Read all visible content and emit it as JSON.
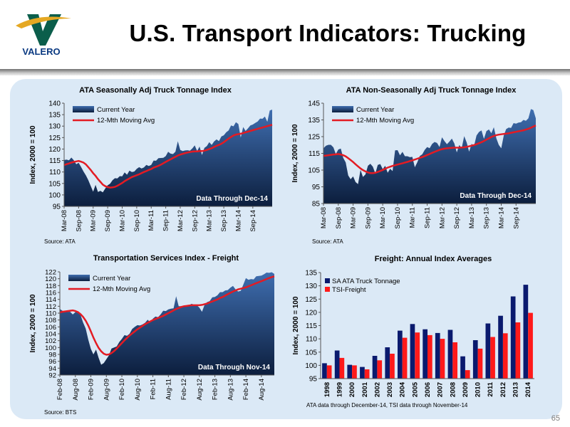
{
  "header": {
    "title": "U.S. Transport Indicators:  Trucking",
    "logo_text": "VALERO",
    "page_number": "65"
  },
  "colors": {
    "area_top": "#3f6eb0",
    "area_bottom": "#0c1e3d",
    "moving_avg": "#e31b23",
    "bar_dark": "#0a1a6e",
    "bar_red": "#ff1a1a",
    "panel_bg": "#dbe9f6"
  },
  "chart_data": [
    {
      "type": "area",
      "title": "ATA Seasonally Adj Truck Tonnage Index",
      "ylabel": "Index, 2000 = 100",
      "xlabel": "",
      "ylim": [
        95,
        140
      ],
      "yticks": [
        95,
        100,
        105,
        110,
        115,
        120,
        125,
        130,
        135,
        140
      ],
      "x_start": "2008-03",
      "tick_labels": [
        "Mar-08",
        "Sep-08",
        "Mar-09",
        "Sep-09",
        "Mar-10",
        "Sep-10",
        "Mar-11",
        "Sep-11",
        "Mar-12",
        "Sep-12",
        "Mar-13",
        "Sep-13",
        "Mar-14",
        "Sep-14"
      ],
      "series": [
        {
          "name": "Current Year",
          "kind": "area",
          "values": [
            115.2,
            115.4,
            115.1,
            116.3,
            115.1,
            113.4,
            114.0,
            112.2,
            110.2,
            108.5,
            106.4,
            103.9,
            101.4,
            104.4,
            101.3,
            101.8,
            101.1,
            102.8,
            104.2,
            104.9,
            106.4,
            107.3,
            107.2,
            108.2,
            108.1,
            109.8,
            108.8,
            110.6,
            110.0,
            110.2,
            111.4,
            112.1,
            111.5,
            112.0,
            113.1,
            112.6,
            113.1,
            115.0,
            114.9,
            116.0,
            116.1,
            116.2,
            116.9,
            118.8,
            118.0,
            117.8,
            118.8,
            123.4,
            119.6,
            119.1,
            119.4,
            119.5,
            119.3,
            120.3,
            121.6,
            119.1,
            121.1,
            117.4,
            120.5,
            121.3,
            123.0,
            121.8,
            123.3,
            124.2,
            123.5,
            125.5,
            126.0,
            127.3,
            128.1,
            130.3,
            129.9,
            131.7,
            130.9,
            125.0,
            129.6,
            127.9,
            129.0,
            130.3,
            130.7,
            131.4,
            132.0,
            133.3,
            133.2,
            134.2,
            131.9,
            136.8,
            137.2
          ]
        },
        {
          "name": "12-Mth Moving Avg",
          "kind": "line",
          "values": [
            113.0,
            113.4,
            113.7,
            114.1,
            114.4,
            114.6,
            114.8,
            114.5,
            114.1,
            113.3,
            112.1,
            110.9,
            109.5,
            108.3,
            106.9,
            105.7,
            104.5,
            103.8,
            103.4,
            103.2,
            103.3,
            103.5,
            104.0,
            104.6,
            105.2,
            106.0,
            106.6,
            107.2,
            107.8,
            108.2,
            108.6,
            109.0,
            109.5,
            110.0,
            110.4,
            110.9,
            111.3,
            111.9,
            112.3,
            112.7,
            113.2,
            113.8,
            114.4,
            115.0,
            115.5,
            116.1,
            116.6,
            117.2,
            117.6,
            117.9,
            118.2,
            118.5,
            118.7,
            118.9,
            119.0,
            119.0,
            119.1,
            119.1,
            119.3,
            119.6,
            120.0,
            120.4,
            120.9,
            121.4,
            121.8,
            122.3,
            123.0,
            123.8,
            124.6,
            125.3,
            125.9,
            126.3,
            126.5,
            126.7,
            127.0,
            127.3,
            127.6,
            127.9,
            128.2,
            128.5,
            128.8,
            129.1,
            129.4,
            129.7,
            130.0,
            130.3,
            130.6
          ]
        }
      ],
      "annotation": "Data Through Dec-14",
      "source": "Source:  ATA",
      "legend": "top-left"
    },
    {
      "type": "area",
      "title": "ATA Non-Seasonally Adj Truck Tonnage Index",
      "ylabel": "Index, 2000 = 100",
      "xlabel": "",
      "ylim": [
        85,
        145
      ],
      "yticks": [
        85,
        95,
        105,
        115,
        125,
        135,
        145
      ],
      "x_start": "2008-03",
      "tick_labels": [
        "Mar-08",
        "Sep-08",
        "Mar-09",
        "Sep-09",
        "Mar-10",
        "Sep-10",
        "Mar-11",
        "Sep-11",
        "Mar-12",
        "Sep-12",
        "Mar-13",
        "Sep-13",
        "Mar-14",
        "Sep-14"
      ],
      "series": [
        {
          "name": "Current Year",
          "kind": "area",
          "values": [
            118.0,
            119.6,
            120.1,
            120.1,
            118.6,
            114.6,
            117.3,
            117.9,
            112.3,
            109.6,
            101.8,
            99.5,
            101.2,
            97.9,
            96.6,
            105.1,
            100.9,
            102.4,
            107.6,
            108.8,
            107.0,
            102.9,
            108.1,
            108.6,
            105.6,
            107.6,
            103.4,
            105.8,
            104.4,
            116.8,
            116.9,
            113.8,
            115.9,
            113.3,
            113.3,
            112.7,
            112.9,
            106.7,
            109.7,
            113.4,
            114.4,
            117.1,
            118.8,
            118.1,
            120.6,
            121.8,
            121.2,
            118.8,
            124.6,
            122.3,
            120.5,
            122.0,
            123.8,
            120.9,
            115.6,
            120.0,
            118.2,
            125.3,
            121.5,
            116.0,
            120.7,
            119.5,
            125.7,
            127.8,
            128.7,
            123.7,
            128.3,
            129.3,
            127.0,
            130.6,
            124.0,
            120.1,
            118.0,
            125.6,
            129.5,
            130.4,
            130.2,
            133.1,
            132.8,
            133.4,
            133.6,
            135.0,
            134.5,
            136.0,
            141.5,
            140.9,
            136.0
          ]
        },
        {
          "name": "12-Mth Moving Avg",
          "kind": "line",
          "values": [
            113.5,
            113.7,
            113.9,
            114.1,
            114.3,
            114.4,
            114.6,
            114.3,
            113.9,
            113.2,
            112.1,
            111.0,
            109.8,
            108.5,
            107.2,
            106.0,
            105.0,
            104.2,
            103.6,
            103.2,
            103.2,
            103.4,
            103.9,
            104.5,
            105.1,
            105.8,
            106.5,
            107.0,
            107.5,
            107.9,
            108.3,
            108.7,
            109.1,
            109.5,
            109.9,
            110.4,
            110.8,
            111.3,
            111.8,
            112.3,
            112.8,
            113.4,
            114.0,
            114.6,
            115.3,
            115.9,
            116.5,
            117.1,
            117.5,
            117.8,
            118.0,
            118.2,
            118.3,
            118.4,
            118.4,
            118.4,
            118.5,
            118.6,
            118.9,
            119.2,
            119.6,
            120.0,
            120.5,
            121.1,
            121.7,
            122.4,
            123.2,
            124.0,
            124.8,
            125.4,
            125.9,
            126.2,
            126.4,
            126.6,
            126.8,
            127.0,
            127.3,
            127.6,
            127.9,
            128.2,
            128.5,
            128.8,
            129.2,
            129.7,
            130.3,
            131.0,
            131.7
          ]
        }
      ],
      "annotation": "Data Through Dec-14",
      "source": "Source:  ATA",
      "legend": "top-left"
    },
    {
      "type": "area",
      "title": "Transportation Services Index - Freight",
      "ylabel": "Index, 2000 = 100",
      "xlabel": "",
      "ylim": [
        92,
        122
      ],
      "yticks": [
        92,
        94,
        96,
        98,
        100,
        102,
        104,
        106,
        108,
        110,
        112,
        114,
        116,
        118,
        120,
        122
      ],
      "x_start": "2008-02",
      "tick_labels": [
        "Feb-08",
        "Aug-08",
        "Feb-09",
        "Aug-09",
        "Feb-10",
        "Aug-10",
        "Feb-11",
        "Aug-11",
        "Feb-12",
        "Aug-12",
        "Feb-13",
        "Aug-13",
        "Feb-14",
        "Aug-14"
      ],
      "series": [
        {
          "name": "Current Year",
          "kind": "area",
          "values": [
            111.2,
            110.7,
            110.3,
            110.4,
            110.4,
            109.6,
            110.3,
            110.6,
            109.5,
            107.3,
            105.5,
            102.3,
            99.6,
            98.0,
            99.4,
            97.0,
            95.0,
            95.5,
            96.6,
            97.7,
            99.7,
            100.0,
            100.3,
            101.6,
            102.5,
            103.6,
            103.4,
            104.0,
            105.4,
            106.0,
            106.5,
            106.4,
            106.7,
            107.2,
            108.1,
            107.3,
            108.4,
            109.0,
            108.8,
            109.6,
            110.7,
            110.6,
            111.1,
            111.3,
            111.4,
            114.9,
            112.0,
            112.0,
            111.9,
            112.0,
            112.3,
            112.7,
            112.4,
            112.3,
            111.6,
            110.4,
            112.4,
            113.2,
            113.5,
            114.6,
            114.7,
            115.2,
            116.1,
            116.1,
            116.6,
            116.7,
            117.4,
            117.9,
            116.9,
            116.3,
            116.5,
            118.3,
            120.2,
            119.7,
            119.9,
            119.8,
            120.7,
            120.8,
            120.9,
            121.3,
            121.8,
            121.7,
            121.9,
            121.4
          ]
        },
        {
          "name": "12-Mth Moving Avg",
          "kind": "line",
          "values": [
            110.2,
            110.4,
            110.5,
            110.6,
            110.7,
            110.8,
            110.6,
            110.3,
            109.7,
            108.9,
            107.8,
            106.4,
            104.7,
            102.9,
            101.3,
            99.9,
            98.9,
            98.2,
            97.9,
            98.0,
            98.4,
            99.0,
            99.7,
            100.5,
            101.3,
            102.1,
            102.8,
            103.5,
            104.1,
            104.7,
            105.3,
            105.8,
            106.3,
            106.8,
            107.2,
            107.6,
            108.0,
            108.3,
            108.6,
            108.9,
            109.2,
            109.6,
            110.0,
            110.4,
            110.8,
            111.2,
            111.5,
            111.8,
            112.0,
            112.1,
            112.2,
            112.3,
            112.3,
            112.3,
            112.3,
            112.4,
            112.6,
            112.8,
            113.1,
            113.4,
            113.7,
            114.0,
            114.4,
            114.7,
            115.1,
            115.5,
            115.9,
            116.3,
            116.6,
            116.9,
            117.1,
            117.3,
            117.5,
            117.8,
            118.1,
            118.4,
            118.7,
            119.0,
            119.3,
            119.6,
            119.9,
            120.2,
            120.5,
            120.7
          ]
        }
      ],
      "annotation": "Data Through Nov-14",
      "source": "Source:  BTS",
      "legend": "top-left"
    },
    {
      "type": "bar",
      "title": "Freight: Annual Index Averages",
      "ylabel": "Index, 2000 = 100",
      "xlabel": "",
      "ylim": [
        95,
        135
      ],
      "yticks": [
        95,
        100,
        105,
        110,
        115,
        120,
        125,
        130,
        135
      ],
      "categories": [
        "1998",
        "1999",
        "2000",
        "2001",
        "2002",
        "2003",
        "2004",
        "2005",
        "2006",
        "2007",
        "2008",
        "2009",
        "2010",
        "2011",
        "2012",
        "2013",
        "2014"
      ],
      "series": [
        {
          "name": "SA ATA Truck Tonnage",
          "values": [
            100.8,
            105.6,
            100.2,
            99.4,
            103.6,
            106.8,
            113.1,
            115.6,
            113.6,
            112.2,
            113.4,
            103.4,
            109.5,
            115.8,
            118.7,
            126.0,
            130.4
          ]
        },
        {
          "name": "TSI-Freight",
          "values": [
            100.0,
            102.8,
            100.0,
            98.5,
            101.9,
            104.4,
            110.4,
            112.4,
            111.4,
            110.0,
            108.7,
            98.2,
            106.3,
            110.7,
            112.1,
            116.2,
            119.8
          ]
        }
      ],
      "footnote": "ATA data through December-14, TSI data through November-14",
      "legend": "top-left"
    }
  ]
}
